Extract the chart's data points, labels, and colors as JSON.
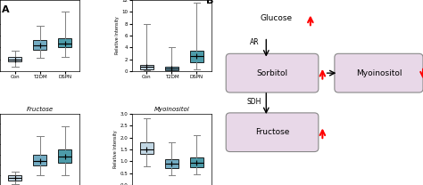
{
  "glucose": {
    "Con": {
      "q1": 0.4,
      "median": 0.5,
      "q3": 0.6,
      "whisker_low": 0.2,
      "whisker_high": 0.85,
      "mean": 0.5
    },
    "T2DM": {
      "q1": 0.9,
      "median": 1.1,
      "q3": 1.3,
      "whisker_low": 0.55,
      "whisker_high": 1.9,
      "mean": 1.1
    },
    "DSPN": {
      "q1": 1.0,
      "median": 1.15,
      "q3": 1.4,
      "whisker_low": 0.6,
      "whisker_high": 2.5,
      "mean": 1.15
    }
  },
  "sorbitol": {
    "Con": {
      "q1": 0.3,
      "median": 0.7,
      "q3": 1.0,
      "whisker_low": 0.1,
      "whisker_high": 8.0,
      "mean": 0.7
    },
    "T2DM": {
      "q1": 0.2,
      "median": 0.4,
      "q3": 0.7,
      "whisker_low": 0.05,
      "whisker_high": 4.0,
      "mean": 0.4
    },
    "DSPN": {
      "q1": 1.5,
      "median": 2.5,
      "q3": 3.5,
      "whisker_low": 0.3,
      "whisker_high": 11.5,
      "mean": 2.5
    }
  },
  "fructose": {
    "Con": {
      "q1": 0.2,
      "median": 0.35,
      "q3": 0.5,
      "whisker_low": 0.05,
      "whisker_high": 0.65,
      "mean": 0.35
    },
    "T2DM": {
      "q1": 0.95,
      "median": 1.2,
      "q3": 1.5,
      "whisker_low": 0.5,
      "whisker_high": 2.4,
      "mean": 1.2
    },
    "DSPN": {
      "q1": 1.1,
      "median": 1.4,
      "q3": 1.75,
      "whisker_low": 0.5,
      "whisker_high": 2.9,
      "mean": 1.4
    }
  },
  "myoinositol": {
    "Con": {
      "q1": 1.3,
      "median": 1.5,
      "q3": 1.8,
      "whisker_low": 0.8,
      "whisker_high": 2.8,
      "mean": 1.5
    },
    "T2DM": {
      "q1": 0.7,
      "median": 0.9,
      "q3": 1.1,
      "whisker_low": 0.4,
      "whisker_high": 1.8,
      "mean": 0.9
    },
    "DSPN": {
      "q1": 0.75,
      "median": 0.95,
      "q3": 1.15,
      "whisker_low": 0.45,
      "whisker_high": 2.1,
      "mean": 0.95
    }
  },
  "ylabel": "Relative Intensity",
  "groups": [
    "Con",
    "T2DM",
    "DSPN"
  ],
  "glucose_ylim": [
    0.0,
    3.0
  ],
  "sorbitol_ylim": [
    0,
    12
  ],
  "fructose_ylim": [
    0.0,
    3.5
  ],
  "myoinositol_ylim": [
    0,
    3
  ],
  "box_color_con": "#b8d0e0",
  "box_color_t2dm": "#5b9db8",
  "box_color_dspn": "#2e8a9a",
  "pathway_box_color": "#e8d8e8",
  "pathway_box_edge": "#888888"
}
